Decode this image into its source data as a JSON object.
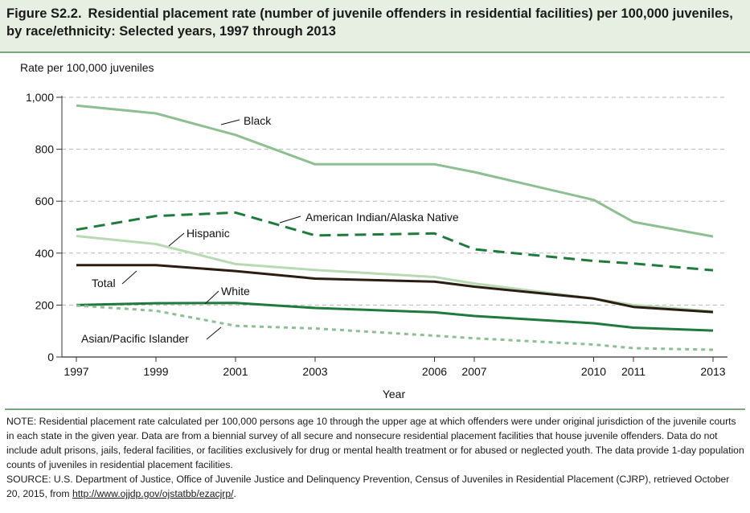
{
  "figure": {
    "label": "Figure S2.2.",
    "title": "Residential placement rate (number of juvenile offenders in residential facilities) per 100,000 juveniles, by race/ethnicity: Selected years, 1997 through 2013"
  },
  "note": {
    "text": "NOTE: Residential placement rate calculated per 100,000 persons age 10 through the upper age at which offenders were under original jurisdiction of the juvenile courts in each state in the given year. Data are from a biennial survey of all secure and nonsecure residential placement facilities that house juvenile offenders. Data do not include adult prisons, jails, federal facilities, or facilities exclusively for drug or mental health treatment or for abused or neglected youth. The data provide 1-day population counts of juveniles in residential placement facilities.",
    "source": "SOURCE: U.S. Department of Justice, Office of Juvenile Justice and Delinquency Prevention, Census of Juveniles in Residential Placement (CJRP), retrieved October 20, 2015, from ",
    "link": "http://www.ojjdp.gov/ojstatbb/ezacjrp/",
    "source_end": "."
  },
  "chart_data": {
    "type": "line",
    "title": "",
    "ylabel": "Rate per 100,000 juveniles",
    "xlabel": "Year",
    "x": [
      1997,
      1999,
      2001,
      2003,
      2006,
      2007,
      2010,
      2011,
      2013
    ],
    "x_ticks": [
      "1997",
      "1999",
      "2001",
      "2003",
      "2006",
      "2007",
      "2010",
      "2011",
      "2013"
    ],
    "ylim": [
      0,
      1000
    ],
    "y_ticks": [
      0,
      200,
      400,
      600,
      800,
      1000
    ],
    "y_tick_labels": [
      "0",
      "200",
      "400",
      "600",
      "800",
      "1,000"
    ],
    "grid": "horizontal dashed",
    "series": [
      {
        "name": "Black",
        "color": "#8dbf93",
        "style": "solid",
        "values": [
          968,
          938,
          855,
          742,
          742,
          712,
          605,
          520,
          464
        ]
      },
      {
        "name": "American Indian/Alaska Native",
        "color": "#1f7a3c",
        "style": "dashed",
        "values": [
          490,
          543,
          556,
          468,
          476,
          415,
          370,
          360,
          334
        ]
      },
      {
        "name": "Hispanic",
        "color": "#b9d9b4",
        "style": "solid",
        "values": [
          466,
          435,
          358,
          335,
          308,
          283,
          225,
          200,
          176
        ]
      },
      {
        "name": "Total",
        "color": "#2a1d12",
        "style": "solid",
        "values": [
          354,
          354,
          331,
          302,
          290,
          271,
          225,
          193,
          173
        ]
      },
      {
        "name": "White",
        "color": "#1f7a3c",
        "style": "solid",
        "values": [
          200,
          207,
          208,
          189,
          172,
          158,
          130,
          113,
          102
        ]
      },
      {
        "name": "Asian/Pacific Islander",
        "color": "#8dbf93",
        "style": "dotted",
        "values": [
          198,
          178,
          120,
          110,
          82,
          72,
          48,
          34,
          28
        ]
      }
    ]
  }
}
